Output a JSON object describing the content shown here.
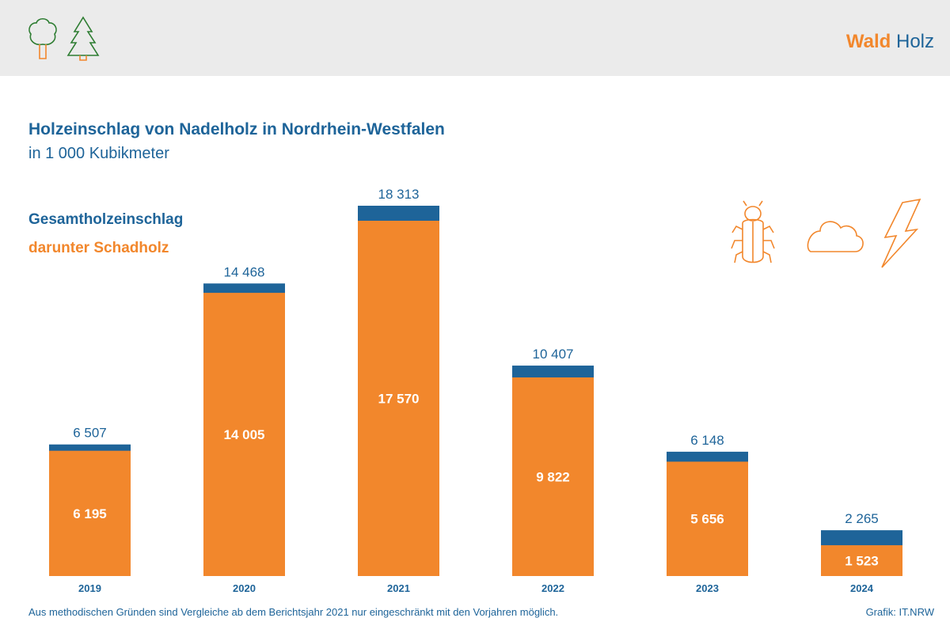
{
  "header": {
    "brand_word1": "Wald",
    "brand_word2": "Holz",
    "logo_icons": [
      "deciduous-tree-icon",
      "conifer-tree-icon"
    ]
  },
  "colors": {
    "total": "#1e6499",
    "damage": "#f2872c",
    "header_bg": "#ebebeb"
  },
  "decorative_icons": [
    "bark-beetle-icon",
    "cloud-icon",
    "lightning-icon"
  ],
  "chart_data": {
    "type": "bar",
    "title": "Holzeinschlag von Nadelholz in Nordrhein-Westfalen",
    "subtitle": "in 1 000 Kubikmeter",
    "categories": [
      "2019",
      "2020",
      "2021",
      "2022",
      "2023",
      "2024"
    ],
    "series": [
      {
        "name": "Gesamtholzeinschlag",
        "values": [
          6507,
          14468,
          18313,
          10407,
          6148,
          2265
        ],
        "labels": [
          "6 507",
          "14 468",
          "18 313",
          "10 407",
          "6 148",
          "2 265"
        ]
      },
      {
        "name": "darunter Schadholz",
        "values": [
          6195,
          14005,
          17570,
          9822,
          5656,
          1523
        ],
        "labels": [
          "6 195",
          "14 005",
          "17 570",
          "9 822",
          "5 656",
          "1 523"
        ]
      }
    ],
    "ylim": [
      0,
      18313
    ],
    "grid": false,
    "legend": "top-left"
  },
  "footer": {
    "note": "Aus methodischen Gründen sind Vergleiche ab dem Berichtsjahr 2021 nur eingeschränkt mit den Vorjahren möglich.",
    "source": "Grafik: IT.NRW"
  }
}
